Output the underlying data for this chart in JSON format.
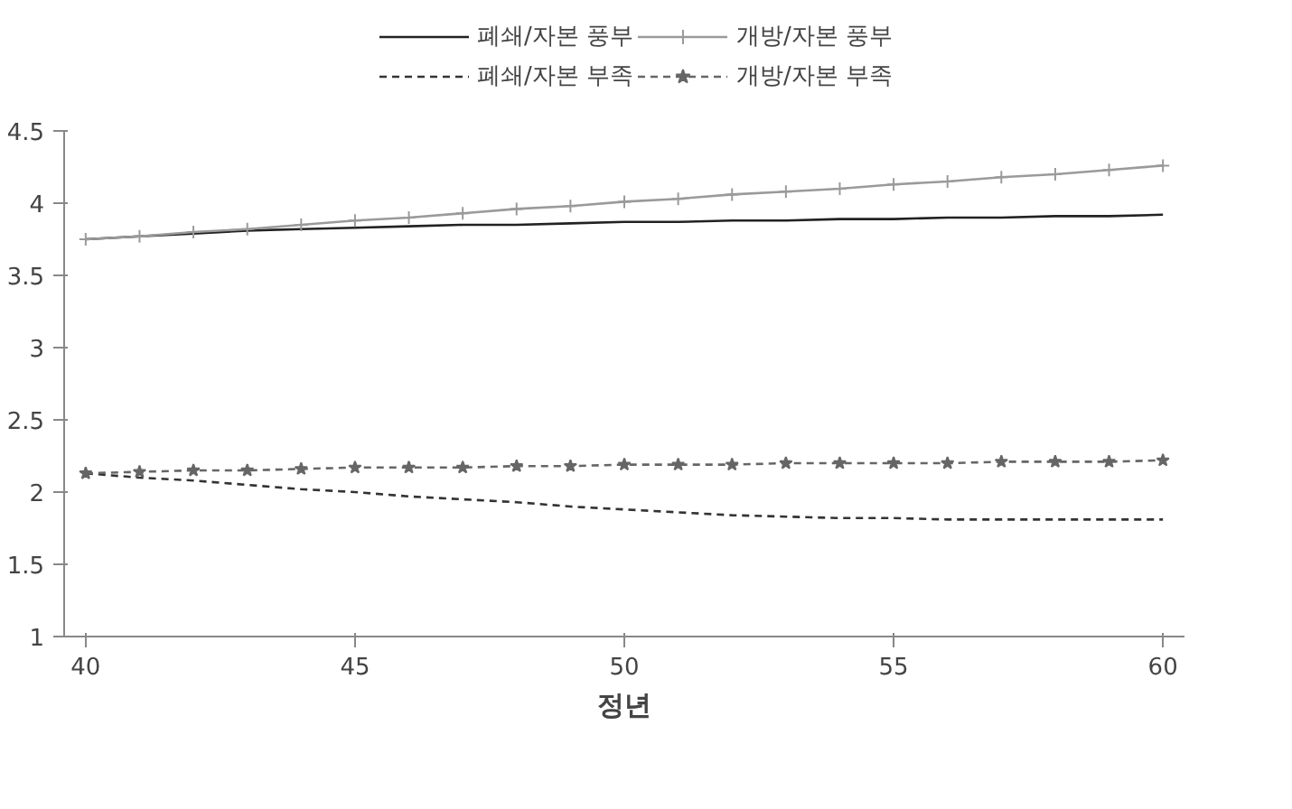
{
  "chart_data": {
    "type": "line",
    "xlabel": "정년",
    "x": [
      40,
      41,
      42,
      43,
      44,
      45,
      46,
      47,
      48,
      49,
      50,
      51,
      52,
      53,
      54,
      55,
      56,
      57,
      58,
      59,
      60
    ],
    "xlim": [
      39.6,
      60.4
    ],
    "xticks": [
      40,
      45,
      50,
      55,
      60
    ],
    "ylim": [
      1,
      4.5
    ],
    "yticks": [
      1,
      1.5,
      2,
      2.5,
      3,
      3.5,
      4,
      4.5
    ],
    "grid": false,
    "legend": "top",
    "series": [
      {
        "name": "폐쇄/자본 풍부",
        "color": "#222222",
        "line_style": "solid",
        "marker": "none",
        "values": [
          3.75,
          3.77,
          3.79,
          3.81,
          3.82,
          3.83,
          3.84,
          3.85,
          3.85,
          3.86,
          3.87,
          3.87,
          3.88,
          3.88,
          3.89,
          3.89,
          3.9,
          3.9,
          3.91,
          3.91,
          3.92
        ]
      },
      {
        "name": "폐쇄/자본 부족",
        "color": "#333333",
        "line_style": "dashed",
        "marker": "none",
        "values": [
          2.13,
          2.1,
          2.08,
          2.05,
          2.02,
          2.0,
          1.97,
          1.95,
          1.93,
          1.9,
          1.88,
          1.86,
          1.84,
          1.83,
          1.82,
          1.82,
          1.81,
          1.81,
          1.81,
          1.81,
          1.81
        ]
      },
      {
        "name": "개방/자본 풍부",
        "color": "#9a9a9a",
        "line_style": "solid",
        "marker": "cross",
        "values": [
          3.75,
          3.77,
          3.8,
          3.82,
          3.85,
          3.88,
          3.9,
          3.93,
          3.96,
          3.98,
          4.01,
          4.03,
          4.06,
          4.08,
          4.1,
          4.13,
          4.15,
          4.18,
          4.2,
          4.23,
          4.26
        ]
      },
      {
        "name": "개방/자본 부족",
        "color": "#666666",
        "line_style": "dashed",
        "marker": "star",
        "values": [
          2.13,
          2.14,
          2.15,
          2.15,
          2.16,
          2.17,
          2.17,
          2.17,
          2.18,
          2.18,
          2.19,
          2.19,
          2.19,
          2.2,
          2.2,
          2.2,
          2.2,
          2.21,
          2.21,
          2.21,
          2.22
        ]
      }
    ]
  }
}
